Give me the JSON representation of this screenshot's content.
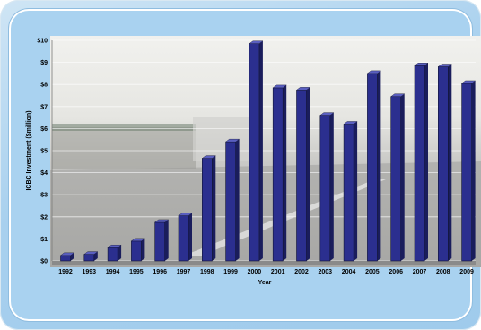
{
  "chart_data": {
    "type": "bar",
    "title": "",
    "xlabel": "Year",
    "ylabel": "ICBC Investment ($million)",
    "ylim": [
      0,
      10
    ],
    "y_ticks": [
      "$0",
      "$1",
      "$2",
      "$3",
      "$4",
      "$5",
      "$6",
      "$7",
      "$8",
      "$9",
      "$10"
    ],
    "categories": [
      "1992",
      "1993",
      "1994",
      "1995",
      "1996",
      "1997",
      "1998",
      "1999",
      "2000",
      "2001",
      "2002",
      "2003",
      "2004",
      "2005",
      "2006",
      "2007",
      "2008",
      "2009"
    ],
    "values": [
      0.25,
      0.3,
      0.6,
      0.9,
      1.75,
      2.05,
      4.65,
      5.4,
      9.85,
      7.85,
      7.75,
      6.6,
      6.2,
      8.5,
      7.45,
      8.85,
      8.8,
      8.05
    ],
    "grid": true,
    "colors": {
      "bar": "#2b2f8f",
      "bar_top": "#5a5fc0",
      "bar_side": "#1a1d5c"
    }
  }
}
